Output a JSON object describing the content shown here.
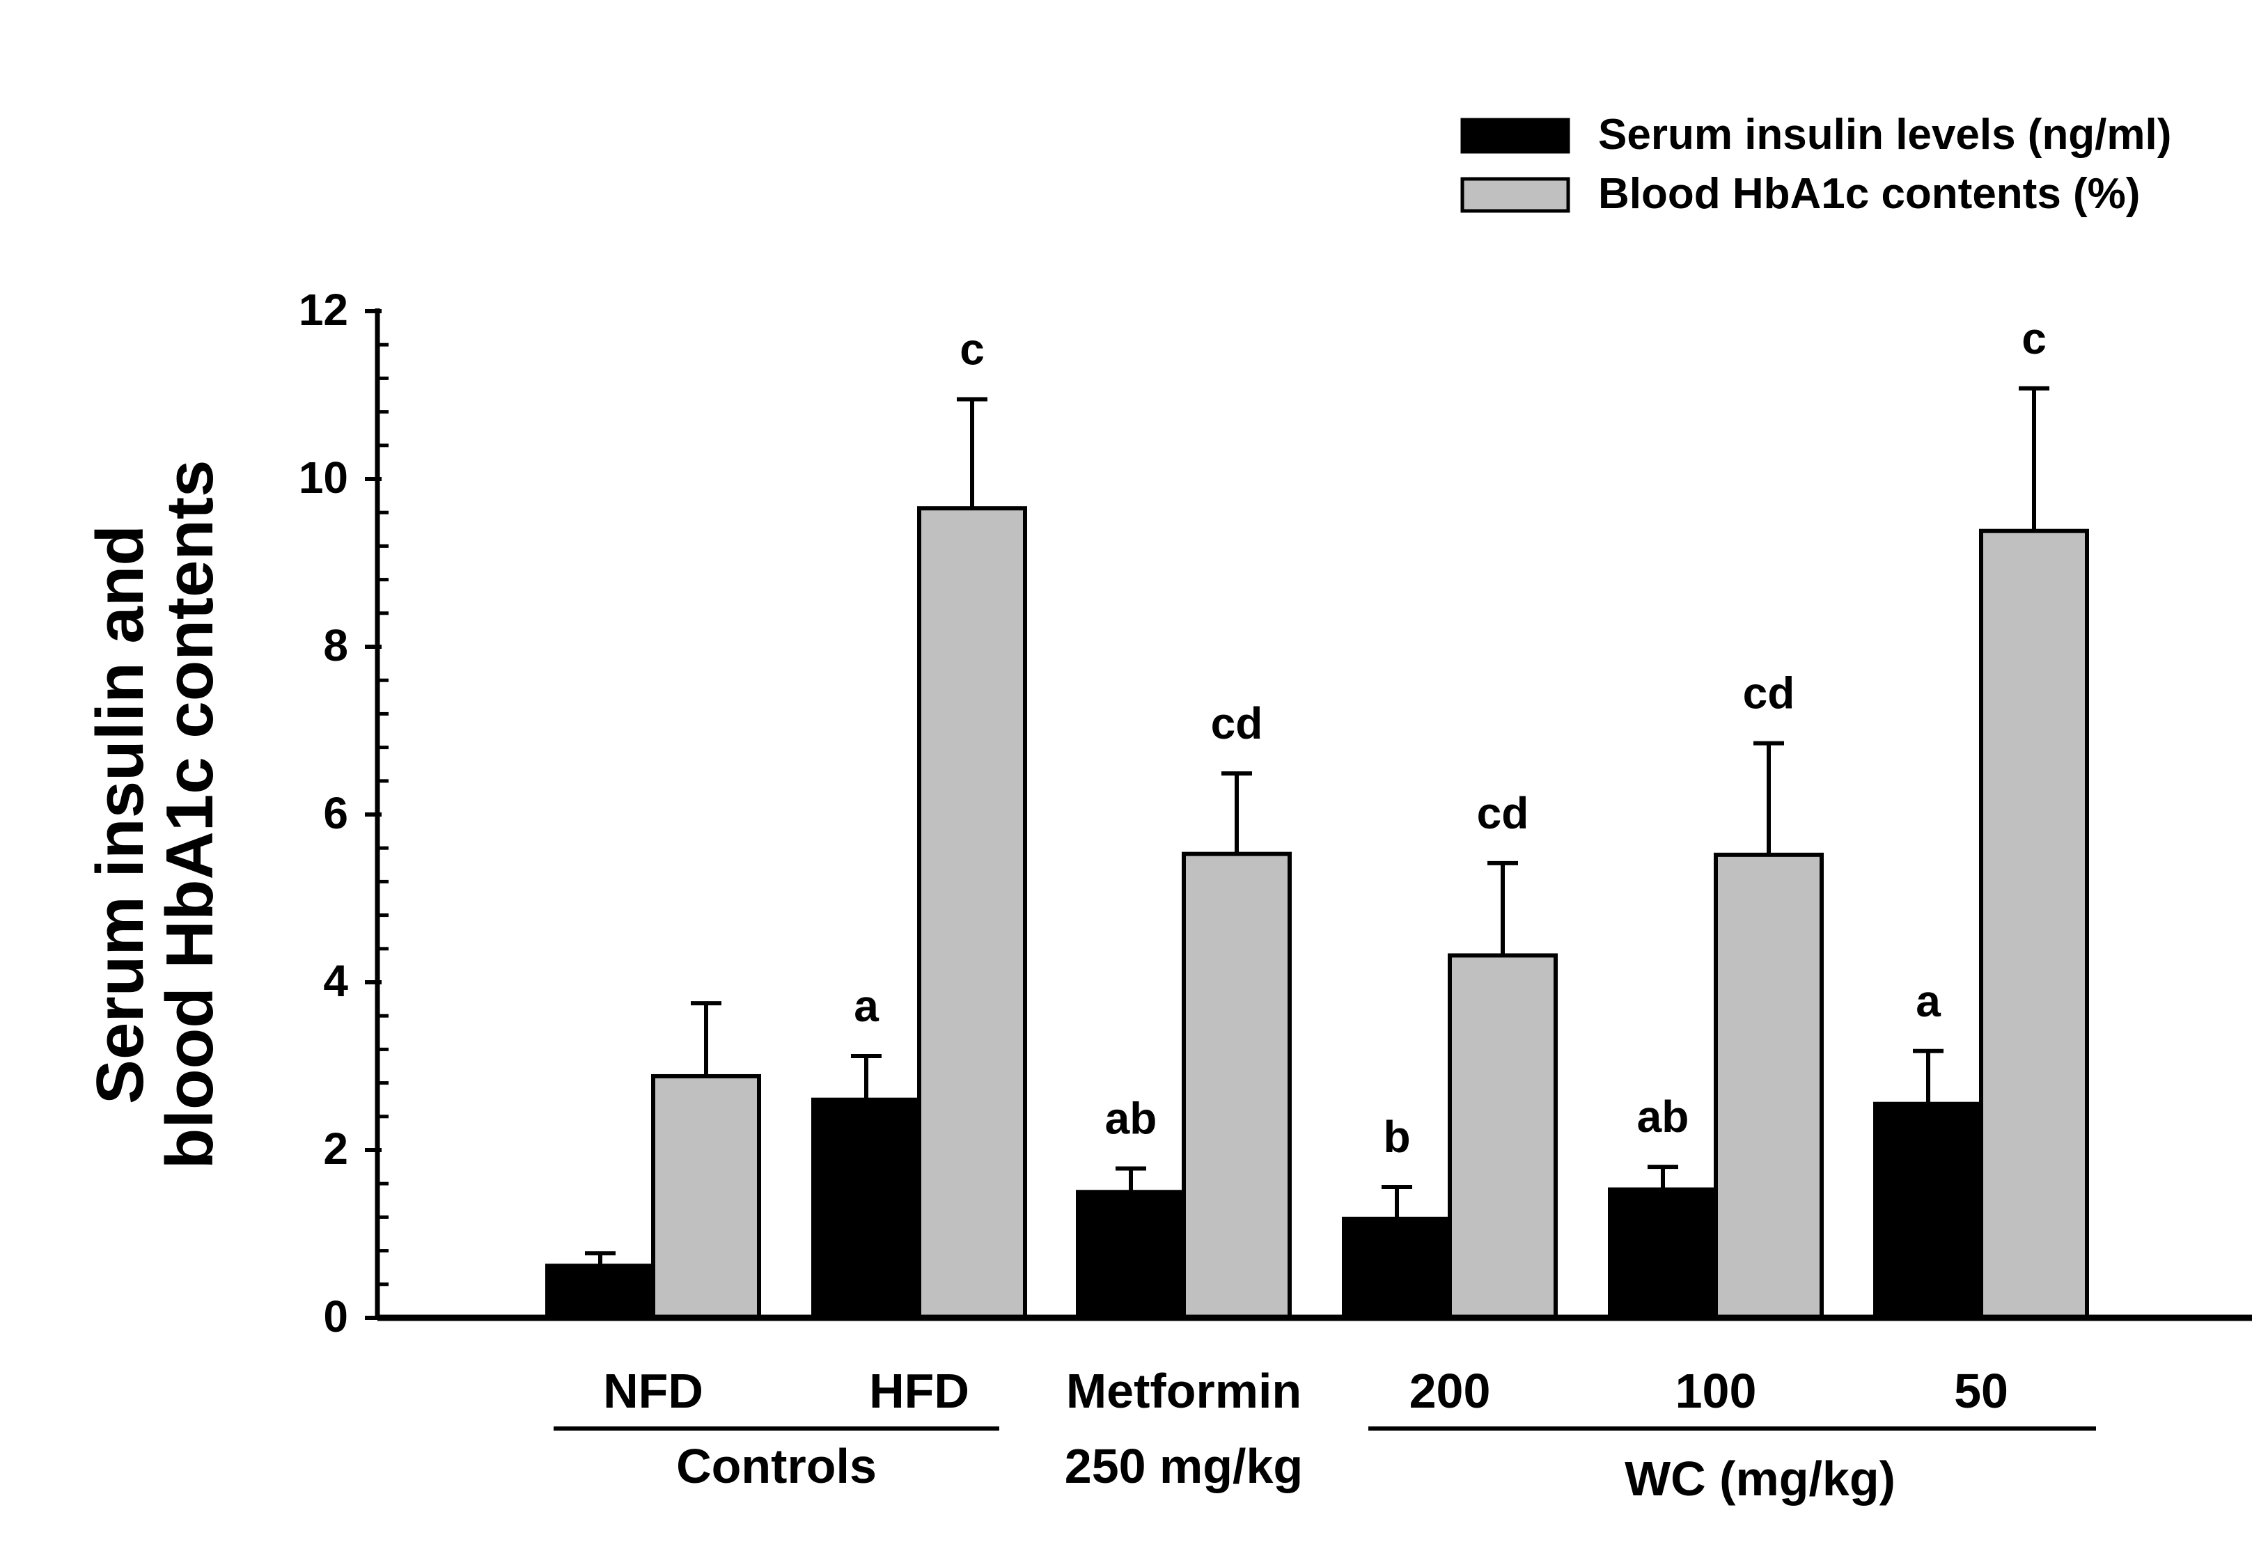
{
  "chart_data": {
    "type": "bar",
    "ylabel_lines": [
      "Serum insulin and",
      "blood HbA1c contents"
    ],
    "ylim": [
      0,
      12
    ],
    "yticks": [
      "0",
      "2",
      "4",
      "6",
      "8",
      "10",
      "12"
    ],
    "categories": [
      "NFD",
      "HFD",
      "Metformin",
      "200",
      "100",
      "50"
    ],
    "category_sublabels": [
      "",
      "",
      "250 mg/kg",
      "",
      "",
      ""
    ],
    "group_labels": [
      "Controls",
      "WC (mg/kg)"
    ],
    "legend_position": "top-right",
    "series": [
      {
        "name": "Serum insulin levels (ng/ml)",
        "color": "#000000",
        "values": [
          0.62,
          2.6,
          1.5,
          1.18,
          1.53,
          2.55
        ],
        "errors": [
          0.15,
          0.52,
          0.28,
          0.38,
          0.27,
          0.63
        ],
        "letters": [
          "",
          "a",
          "ab",
          "b",
          "ab",
          "a"
        ]
      },
      {
        "name": "Blood HbA1c contents (%)",
        "color": "#c0c0c0",
        "values": [
          2.88,
          9.65,
          5.53,
          4.32,
          5.52,
          9.38
        ],
        "errors": [
          0.87,
          1.3,
          0.96,
          1.1,
          1.33,
          1.7
        ],
        "letters": [
          "",
          "c",
          "cd",
          "cd",
          "cd",
          "c"
        ]
      }
    ]
  }
}
